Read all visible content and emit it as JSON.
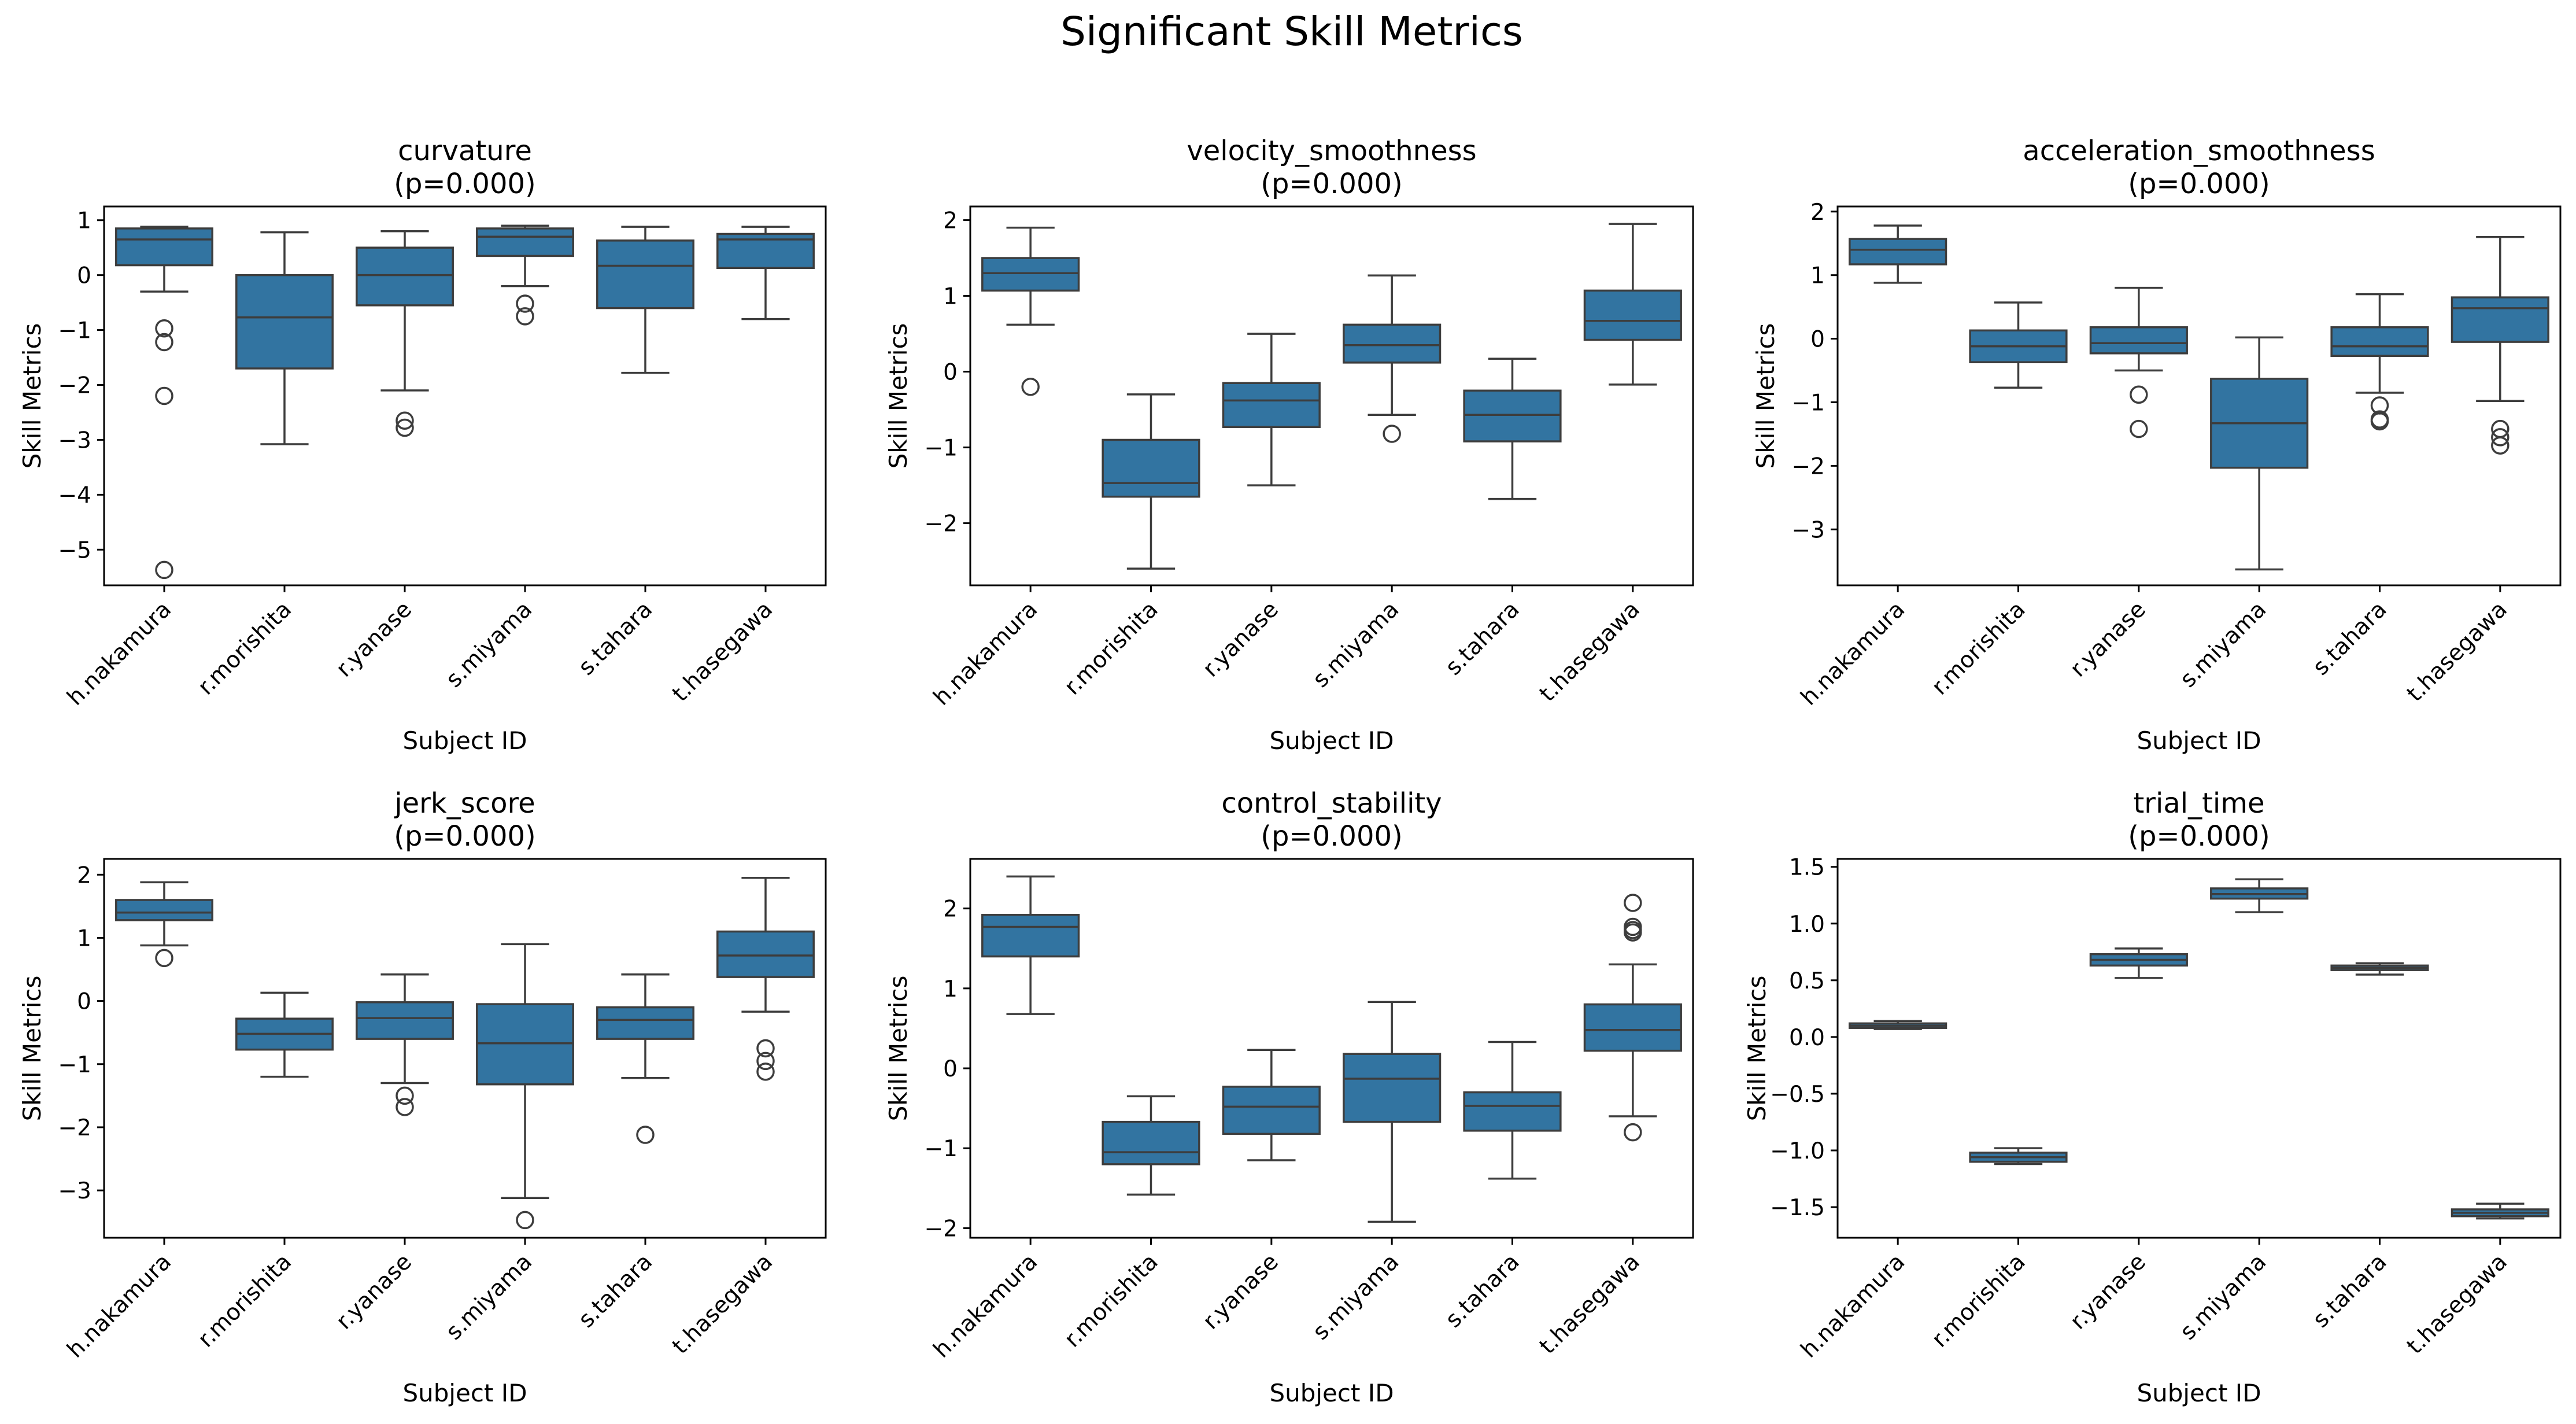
{
  "figure": {
    "suptitle": "Significant Skill Metrics"
  },
  "chart_data": [
    {
      "type": "box",
      "title": "curvature\n(p=0.000)",
      "xlabel": "Subject ID",
      "ylabel": "Skill Metrics",
      "categories": [
        "h.nakamura",
        "r.morishita",
        "r.yanase",
        "s.miyama",
        "s.tahara",
        "t.hasegawa"
      ],
      "ylim": [
        -5.65,
        1.25
      ],
      "yticks": [
        -5,
        -4,
        -3,
        -2,
        -1,
        0,
        1
      ],
      "color": "#3274a1",
      "boxes": [
        {
          "whislo": -0.3,
          "q1": 0.18,
          "med": 0.65,
          "q3": 0.85,
          "whishi": 0.88,
          "fliers": [
            -0.97,
            -1.22,
            -2.2,
            -5.37
          ]
        },
        {
          "whislo": -3.08,
          "q1": -1.7,
          "med": -0.77,
          "q3": 0.0,
          "whishi": 0.78,
          "fliers": []
        },
        {
          "whislo": -2.1,
          "q1": -0.55,
          "med": 0.0,
          "q3": 0.5,
          "whishi": 0.8,
          "fliers": [
            -2.65,
            -2.78
          ]
        },
        {
          "whislo": -0.2,
          "q1": 0.35,
          "med": 0.7,
          "q3": 0.85,
          "whishi": 0.9,
          "fliers": [
            -0.52,
            -0.75
          ]
        },
        {
          "whislo": -1.78,
          "q1": -0.6,
          "med": 0.17,
          "q3": 0.63,
          "whishi": 0.88,
          "fliers": []
        },
        {
          "whislo": -0.8,
          "q1": 0.13,
          "med": 0.65,
          "q3": 0.75,
          "whishi": 0.88,
          "fliers": []
        }
      ]
    },
    {
      "type": "box",
      "title": "velocity_smoothness\n(p=0.000)",
      "xlabel": "Subject ID",
      "ylabel": "Skill Metrics",
      "categories": [
        "h.nakamura",
        "r.morishita",
        "r.yanase",
        "s.miyama",
        "s.tahara",
        "t.hasegawa"
      ],
      "ylim": [
        -2.82,
        2.18
      ],
      "yticks": [
        -2,
        -1,
        0,
        1,
        2
      ],
      "color": "#3274a1",
      "boxes": [
        {
          "whislo": 0.62,
          "q1": 1.07,
          "med": 1.3,
          "q3": 1.5,
          "whishi": 1.9,
          "fliers": [
            -0.2
          ]
        },
        {
          "whislo": -2.6,
          "q1": -1.65,
          "med": -1.47,
          "q3": -0.9,
          "whishi": -0.3,
          "fliers": []
        },
        {
          "whislo": -1.5,
          "q1": -0.73,
          "med": -0.38,
          "q3": -0.15,
          "whishi": 0.5,
          "fliers": []
        },
        {
          "whislo": -0.57,
          "q1": 0.12,
          "med": 0.35,
          "q3": 0.62,
          "whishi": 1.27,
          "fliers": [
            -0.82
          ]
        },
        {
          "whislo": -1.68,
          "q1": -0.92,
          "med": -0.57,
          "q3": -0.25,
          "whishi": 0.17,
          "fliers": []
        },
        {
          "whislo": -0.17,
          "q1": 0.42,
          "med": 0.67,
          "q3": 1.07,
          "whishi": 1.95,
          "fliers": []
        }
      ]
    },
    {
      "type": "box",
      "title": "acceleration_smoothness\n(p=0.000)",
      "xlabel": "Subject ID",
      "ylabel": "Skill Metrics",
      "categories": [
        "h.nakamura",
        "r.morishita",
        "r.yanase",
        "s.miyama",
        "s.tahara",
        "t.hasegawa"
      ],
      "ylim": [
        -3.88,
        2.08
      ],
      "yticks": [
        -3,
        -2,
        -1,
        0,
        1,
        2
      ],
      "color": "#3274a1",
      "boxes": [
        {
          "whislo": 0.88,
          "q1": 1.17,
          "med": 1.4,
          "q3": 1.57,
          "whishi": 1.78,
          "fliers": []
        },
        {
          "whislo": -0.77,
          "q1": -0.37,
          "med": -0.12,
          "q3": 0.13,
          "whishi": 0.57,
          "fliers": []
        },
        {
          "whislo": -0.5,
          "q1": -0.23,
          "med": -0.07,
          "q3": 0.18,
          "whishi": 0.8,
          "fliers": [
            -0.88,
            -1.42
          ]
        },
        {
          "whislo": -3.63,
          "q1": -2.03,
          "med": -1.33,
          "q3": -0.63,
          "whishi": 0.02,
          "fliers": []
        },
        {
          "whislo": -0.85,
          "q1": -0.27,
          "med": -0.12,
          "q3": 0.18,
          "whishi": 0.7,
          "fliers": [
            -1.05,
            -1.27,
            -1.3
          ]
        },
        {
          "whislo": -0.98,
          "q1": -0.05,
          "med": 0.48,
          "q3": 0.65,
          "whishi": 1.6,
          "fliers": [
            -1.42,
            -1.55,
            -1.68
          ]
        }
      ]
    },
    {
      "type": "box",
      "title": "jerk_score\n(p=0.000)",
      "xlabel": "Subject ID",
      "ylabel": "Skill Metrics",
      "categories": [
        "h.nakamura",
        "r.morishita",
        "r.yanase",
        "s.miyama",
        "s.tahara",
        "t.hasegawa"
      ],
      "ylim": [
        -3.75,
        2.25
      ],
      "yticks": [
        -3,
        -2,
        -1,
        0,
        1,
        2
      ],
      "color": "#3274a1",
      "boxes": [
        {
          "whislo": 0.88,
          "q1": 1.28,
          "med": 1.4,
          "q3": 1.6,
          "whishi": 1.88,
          "fliers": [
            0.68
          ]
        },
        {
          "whislo": -1.2,
          "q1": -0.77,
          "med": -0.52,
          "q3": -0.28,
          "whishi": 0.13,
          "fliers": []
        },
        {
          "whislo": -1.3,
          "q1": -0.6,
          "med": -0.27,
          "q3": -0.02,
          "whishi": 0.42,
          "fliers": [
            -1.5,
            -1.68
          ]
        },
        {
          "whislo": -3.12,
          "q1": -1.32,
          "med": -0.67,
          "q3": -0.05,
          "whishi": 0.9,
          "fliers": [
            -3.47
          ]
        },
        {
          "whislo": -1.22,
          "q1": -0.6,
          "med": -0.3,
          "q3": -0.1,
          "whishi": 0.42,
          "fliers": [
            -2.12
          ]
        },
        {
          "whislo": -0.17,
          "q1": 0.38,
          "med": 0.72,
          "q3": 1.1,
          "whishi": 1.95,
          "fliers": [
            -0.75,
            -0.95,
            -1.12
          ]
        }
      ]
    },
    {
      "type": "box",
      "title": "control_stability\n(p=0.000)",
      "xlabel": "Subject ID",
      "ylabel": "Skill Metrics",
      "categories": [
        "h.nakamura",
        "r.morishita",
        "r.yanase",
        "s.miyama",
        "s.tahara",
        "t.hasegawa"
      ],
      "ylim": [
        -2.12,
        2.62
      ],
      "yticks": [
        -2,
        -1,
        0,
        1,
        2
      ],
      "color": "#3274a1",
      "boxes": [
        {
          "whislo": 0.68,
          "q1": 1.4,
          "med": 1.77,
          "q3": 1.92,
          "whishi": 2.4,
          "fliers": []
        },
        {
          "whislo": -1.58,
          "q1": -1.2,
          "med": -1.05,
          "q3": -0.67,
          "whishi": -0.35,
          "fliers": []
        },
        {
          "whislo": -1.15,
          "q1": -0.82,
          "med": -0.48,
          "q3": -0.23,
          "whishi": 0.23,
          "fliers": []
        },
        {
          "whislo": -1.92,
          "q1": -0.67,
          "med": -0.13,
          "q3": 0.18,
          "whishi": 0.83,
          "fliers": []
        },
        {
          "whislo": -1.38,
          "q1": -0.78,
          "med": -0.47,
          "q3": -0.3,
          "whishi": 0.33,
          "fliers": []
        },
        {
          "whislo": -0.6,
          "q1": 0.22,
          "med": 0.48,
          "q3": 0.8,
          "whishi": 1.3,
          "fliers": [
            -0.8,
            1.7,
            1.73,
            1.77,
            2.07
          ]
        }
      ]
    },
    {
      "type": "box",
      "title": "trial_time\n(p=0.000)",
      "xlabel": "Subject ID",
      "ylabel": "Skill Metrics",
      "categories": [
        "h.nakamura",
        "r.morishita",
        "r.yanase",
        "s.miyama",
        "s.tahara",
        "t.hasegawa"
      ],
      "ylim": [
        -1.77,
        1.57
      ],
      "yticks": [
        -1.5,
        -1.0,
        -0.5,
        0.0,
        0.5,
        1.0,
        1.5
      ],
      "ytick_labels": [
        "−1.5",
        "−1.0",
        "−0.5",
        "0.0",
        "0.5",
        "1.0",
        "1.5"
      ],
      "color": "#3274a1",
      "boxes": [
        {
          "whislo": 0.07,
          "q1": 0.08,
          "med": 0.1,
          "q3": 0.12,
          "whishi": 0.14,
          "fliers": []
        },
        {
          "whislo": -1.12,
          "q1": -1.1,
          "med": -1.06,
          "q3": -1.02,
          "whishi": -0.98,
          "fliers": []
        },
        {
          "whislo": 0.52,
          "q1": 0.63,
          "med": 0.68,
          "q3": 0.73,
          "whishi": 0.78,
          "fliers": []
        },
        {
          "whislo": 1.1,
          "q1": 1.22,
          "med": 1.26,
          "q3": 1.31,
          "whishi": 1.39,
          "fliers": []
        },
        {
          "whislo": 0.55,
          "q1": 0.59,
          "med": 0.61,
          "q3": 0.63,
          "whishi": 0.65,
          "fliers": []
        },
        {
          "whislo": -1.6,
          "q1": -1.58,
          "med": -1.55,
          "q3": -1.52,
          "whishi": -1.47,
          "fliers": []
        }
      ]
    }
  ]
}
